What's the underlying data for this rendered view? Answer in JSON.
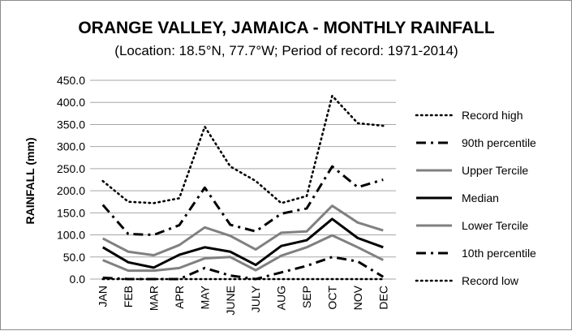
{
  "chart_data": {
    "type": "line",
    "title": "ORANGE VALLEY, JAMAICA - MONTHLY RAINFALL",
    "subtitle": "(Location: 18.5°N, 77.7°W; Period of record: 1971-2014)",
    "ylabel": "RAINFALL (mm)",
    "xlabel": "",
    "categories": [
      "JAN",
      "FEB",
      "MAR",
      "APR",
      "MAY",
      "JUNE",
      "JULY",
      "AUG",
      "SEP",
      "OCT",
      "NOV",
      "DEC"
    ],
    "ylim": [
      0,
      450
    ],
    "y_ticks": [
      "0.0",
      "50.0",
      "100.0",
      "150.0",
      "200.0",
      "250.0",
      "300.0",
      "350.0",
      "400.0",
      "450.0"
    ],
    "grid": "horizontal",
    "legend_position": "right",
    "series": [
      {
        "name": "Record high",
        "style": "dotted",
        "color": "#000000",
        "values": [
          222,
          175,
          172,
          183,
          345,
          255,
          222,
          172,
          188,
          415,
          353,
          347
        ]
      },
      {
        "name": "90th percentile",
        "style": "dashdot",
        "color": "#000000",
        "values": [
          168,
          102,
          100,
          122,
          207,
          123,
          108,
          148,
          160,
          255,
          208,
          225
        ]
      },
      {
        "name": "Upper Tercile",
        "style": "solid",
        "color": "#808080",
        "values": [
          92,
          62,
          54,
          77,
          117,
          98,
          67,
          105,
          108,
          166,
          128,
          110
        ]
      },
      {
        "name": "Median",
        "style": "solid",
        "color": "#000000",
        "values": [
          72,
          38,
          26,
          55,
          72,
          62,
          32,
          75,
          88,
          136,
          93,
          72
        ]
      },
      {
        "name": "Lower Tercile",
        "style": "solid",
        "color": "#808080",
        "values": [
          43,
          19,
          19,
          25,
          47,
          50,
          20,
          53,
          72,
          99,
          72,
          43
        ]
      },
      {
        "name": "10th percentile",
        "style": "dashdot",
        "color": "#000000",
        "values": [
          3,
          0,
          0,
          0,
          25,
          8,
          0,
          15,
          30,
          50,
          40,
          5
        ]
      },
      {
        "name": "Record low",
        "style": "dotted",
        "color": "#000000",
        "values": [
          0,
          0,
          0,
          0,
          0,
          0,
          0,
          0,
          0,
          0,
          0,
          0
        ]
      }
    ]
  }
}
